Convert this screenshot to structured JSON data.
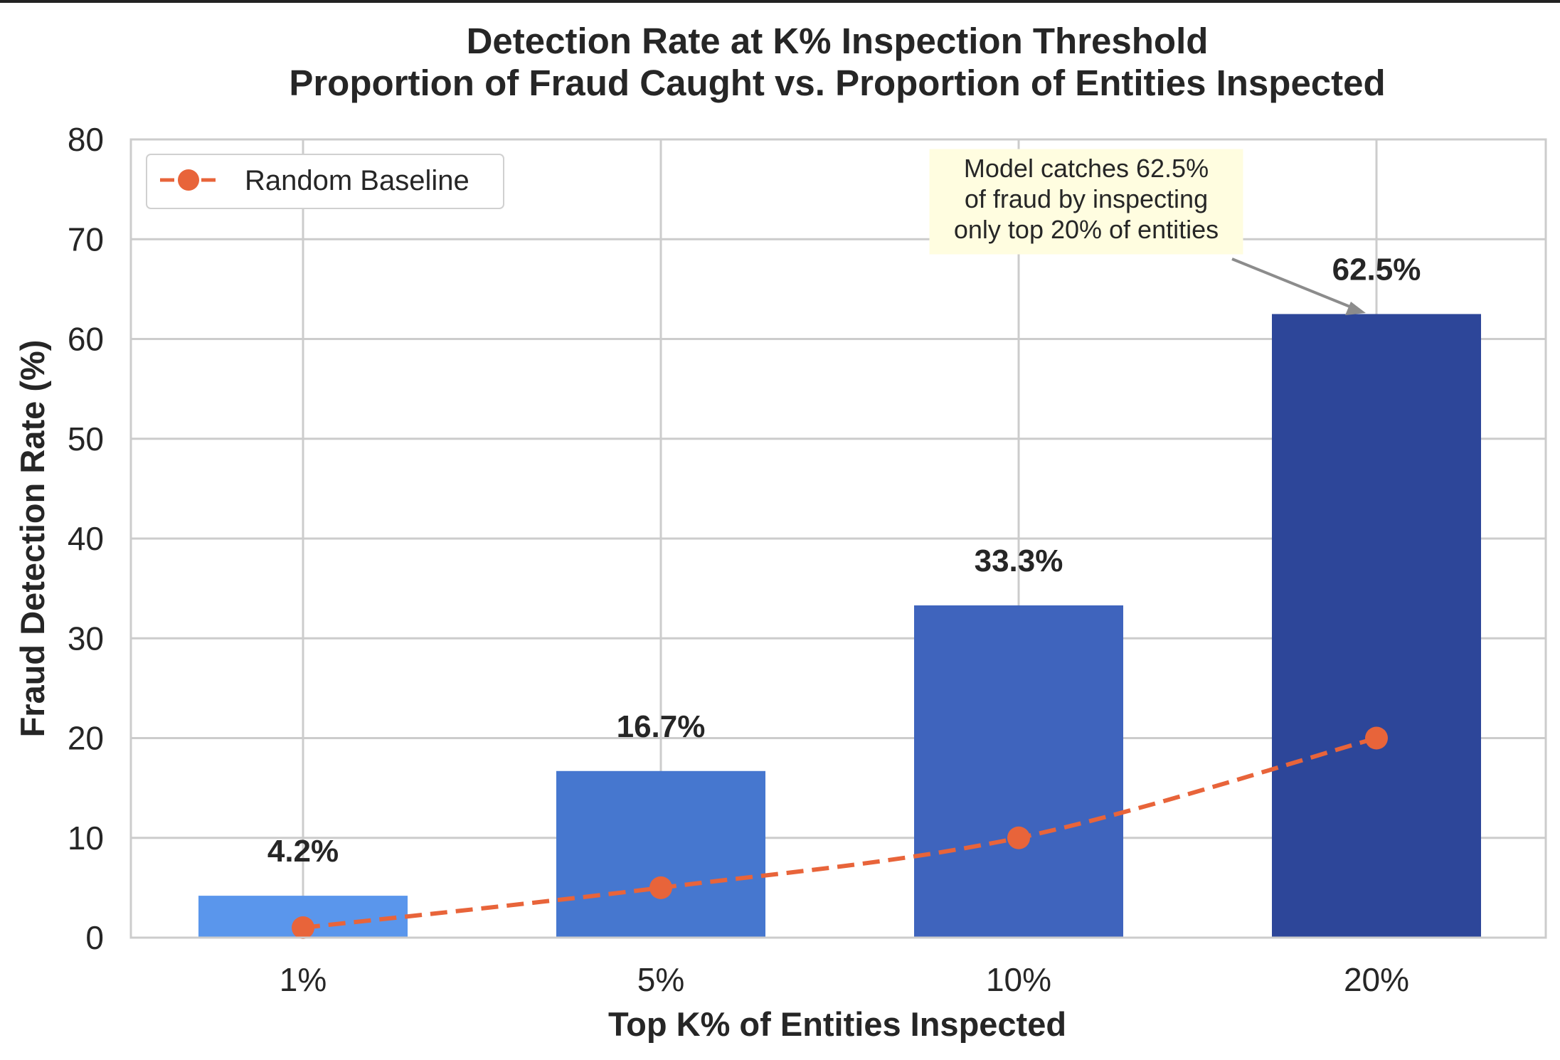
{
  "chart_data": {
    "type": "bar",
    "title": "Detection Rate at K% Inspection Threshold",
    "subtitle": "Proportion of Fraud Caught vs. Proportion of Entities Inspected",
    "xlabel": "Top K% of Entities Inspected",
    "ylabel": "Fraud Detection Rate (%)",
    "categories": [
      "1%",
      "5%",
      "10%",
      "20%"
    ],
    "values": [
      4.2,
      16.7,
      33.3,
      62.5
    ],
    "value_labels": [
      "4.2%",
      "16.7%",
      "33.3%",
      "62.5%"
    ],
    "bar_colors": [
      "#5a96ec",
      "#4677cf",
      "#3f64bd",
      "#2d4699"
    ],
    "ylim": [
      0,
      80
    ],
    "yticks": [
      0,
      10,
      20,
      30,
      40,
      50,
      60,
      70,
      80
    ],
    "grid": true,
    "series": [
      {
        "name": "Random Baseline",
        "type": "line",
        "style": "dashed",
        "marker": "circle",
        "color": "#e8643a",
        "values": [
          1,
          5,
          10,
          20
        ]
      }
    ],
    "legend": {
      "placement": "top-left",
      "entries": [
        "Random Baseline"
      ]
    },
    "annotation": {
      "lines": [
        "Model catches 62.5%",
        "of fraud by inspecting",
        "only top 20% of entities"
      ],
      "target_category": "20%",
      "target_value": 62.5,
      "box_color": "#fffde0",
      "arrow_color": "#8c8c8c"
    }
  }
}
